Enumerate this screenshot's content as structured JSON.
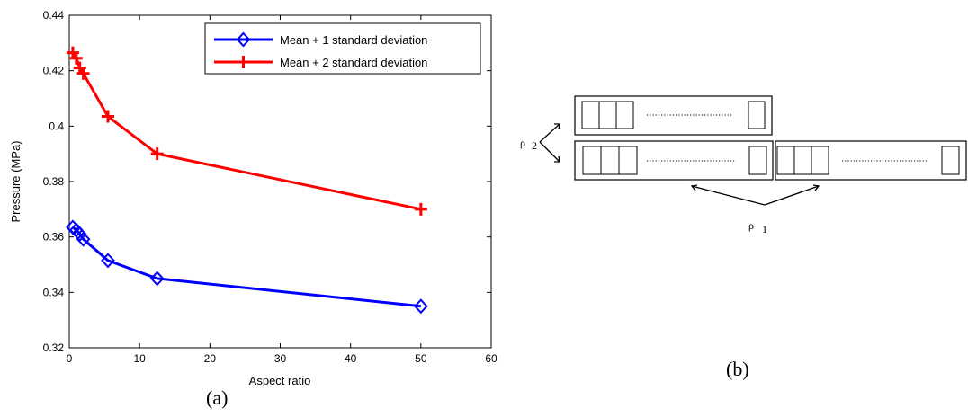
{
  "chart_data": {
    "type": "line",
    "title": "",
    "xlabel": "Aspect ratio",
    "ylabel": "Pressure (MPa)",
    "xlim": [
      0,
      60
    ],
    "ylim": [
      0.32,
      0.44
    ],
    "xticks": [
      "0",
      "10",
      "20",
      "30",
      "40",
      "50",
      "60"
    ],
    "yticks": [
      "0.32",
      "0.34",
      "0.36",
      "0.38",
      "0.4",
      "0.42",
      "0.44"
    ],
    "grid": false,
    "legend_position": "top-right",
    "series": [
      {
        "name": "Mean + 1 standard deviation",
        "color": "#0000ff",
        "marker": "diamond",
        "x": [
          0.5,
          1.0,
          1.5,
          2.0,
          5.5,
          12.5,
          50
        ],
        "y": [
          0.3635,
          0.3625,
          0.361,
          0.3592,
          0.3515,
          0.345,
          0.335
        ]
      },
      {
        "name": "Mean + 2 standard deviation",
        "color": "#ff0000",
        "marker": "plus",
        "x": [
          0.5,
          1.0,
          1.5,
          2.0,
          5.5,
          12.5,
          50
        ],
        "y": [
          0.4265,
          0.4245,
          0.421,
          0.419,
          0.4035,
          0.39,
          0.37
        ]
      }
    ]
  },
  "diagram": {
    "rho2_symbol": "ρ",
    "rho2_subscript": "2",
    "rho1_symbol": "ρ",
    "rho1_subscript": "1"
  },
  "captions": {
    "a": "(a)",
    "b": "(b)"
  }
}
